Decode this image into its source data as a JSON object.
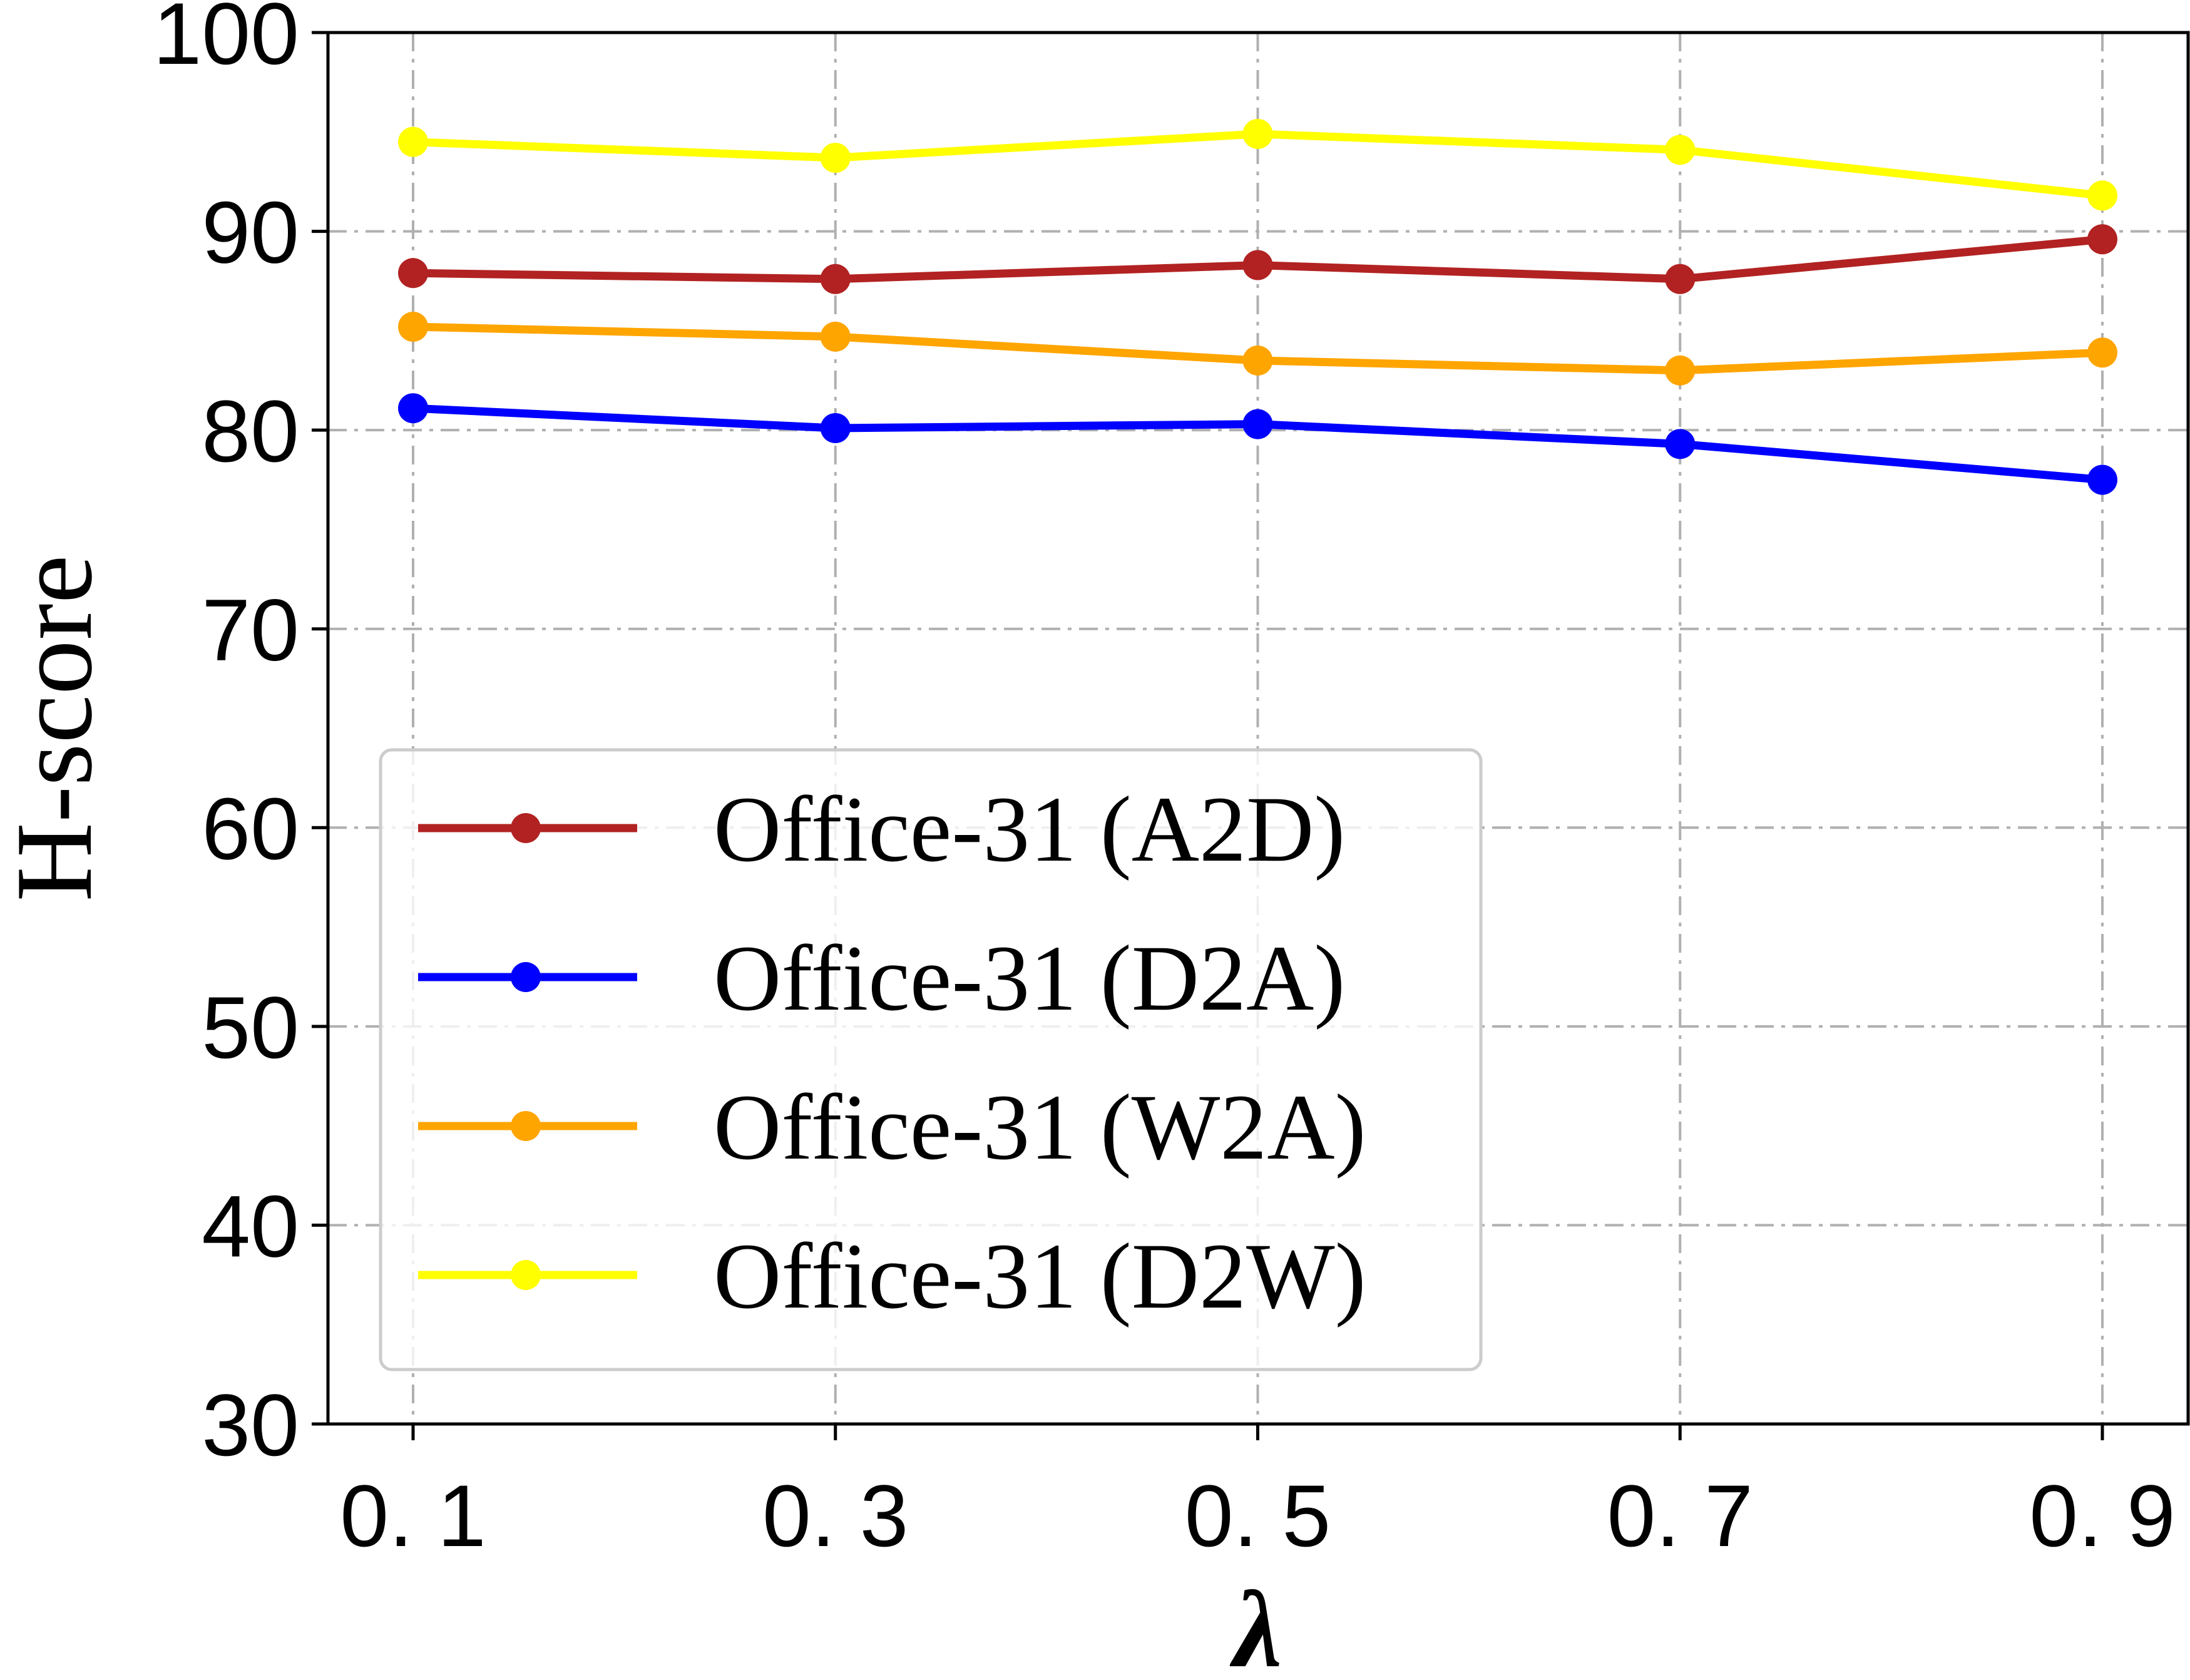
{
  "chart_data": {
    "type": "line",
    "x": [
      0.1,
      0.3,
      0.5,
      0.7,
      0.9
    ],
    "x_tick_labels": [
      "0. 1",
      "0. 3",
      "0. 5",
      "0. 7",
      "0. 9"
    ],
    "y_ticks": [
      30,
      40,
      50,
      60,
      70,
      80,
      90,
      100
    ],
    "ylim": [
      30,
      100
    ],
    "xlabel": "λ",
    "ylabel": "H-score",
    "grid": true,
    "legend_position": "lower-left",
    "series": [
      {
        "name": "Office-31 (A2D)",
        "color": "#b22222",
        "values": [
          87.9,
          87.6,
          88.3,
          87.6,
          89.6
        ]
      },
      {
        "name": "Office-31 (D2A)",
        "color": "#0000ff",
        "values": [
          81.1,
          80.1,
          80.3,
          79.3,
          77.5
        ]
      },
      {
        "name": "Office-31 (W2A)",
        "color": "#ffa500",
        "values": [
          85.2,
          84.7,
          83.5,
          83.0,
          83.9
        ]
      },
      {
        "name": "Office-31 (D2W)",
        "color": "#ffff00",
        "values": [
          94.5,
          93.7,
          94.9,
          94.1,
          91.8
        ]
      }
    ]
  }
}
